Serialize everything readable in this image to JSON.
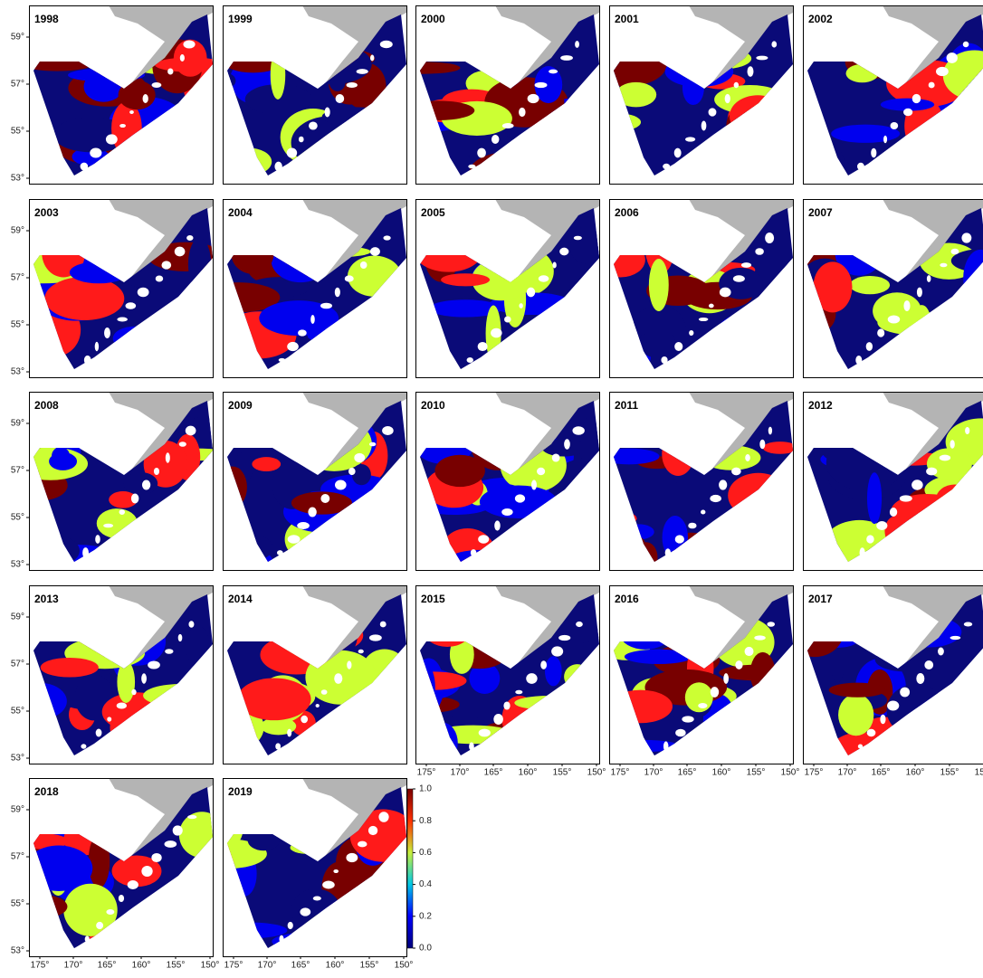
{
  "panels": [
    {
      "label": "1998"
    },
    {
      "label": "1999"
    },
    {
      "label": "2000"
    },
    {
      "label": "2001"
    },
    {
      "label": "2002"
    },
    {
      "label": "2003"
    },
    {
      "label": "2004"
    },
    {
      "label": "2005"
    },
    {
      "label": "2006"
    },
    {
      "label": "2007"
    },
    {
      "label": "2008"
    },
    {
      "label": "2009"
    },
    {
      "label": "2010"
    },
    {
      "label": "2011"
    },
    {
      "label": "2012"
    },
    {
      "label": "2013"
    },
    {
      "label": "2014"
    },
    {
      "label": "2015"
    },
    {
      "label": "2016"
    },
    {
      "label": "2017"
    },
    {
      "label": "2018"
    },
    {
      "label": "2019"
    }
  ],
  "latitude_ticks": [
    "59°",
    "57°",
    "55°",
    "53°"
  ],
  "longitude_ticks": [
    "175°",
    "170°",
    "165°",
    "160°",
    "155°",
    "150°"
  ],
  "colorbar": {
    "range": [
      0,
      1
    ],
    "ticks": [
      {
        "value": 0,
        "label": "0.0"
      },
      {
        "value": 0.2,
        "label": "0.2"
      },
      {
        "value": 0.4,
        "label": "0.4"
      },
      {
        "value": 0.6,
        "label": "0.6"
      },
      {
        "value": 0.8,
        "label": "0.8"
      },
      {
        "value": 1,
        "label": "1.0"
      }
    ]
  }
}
